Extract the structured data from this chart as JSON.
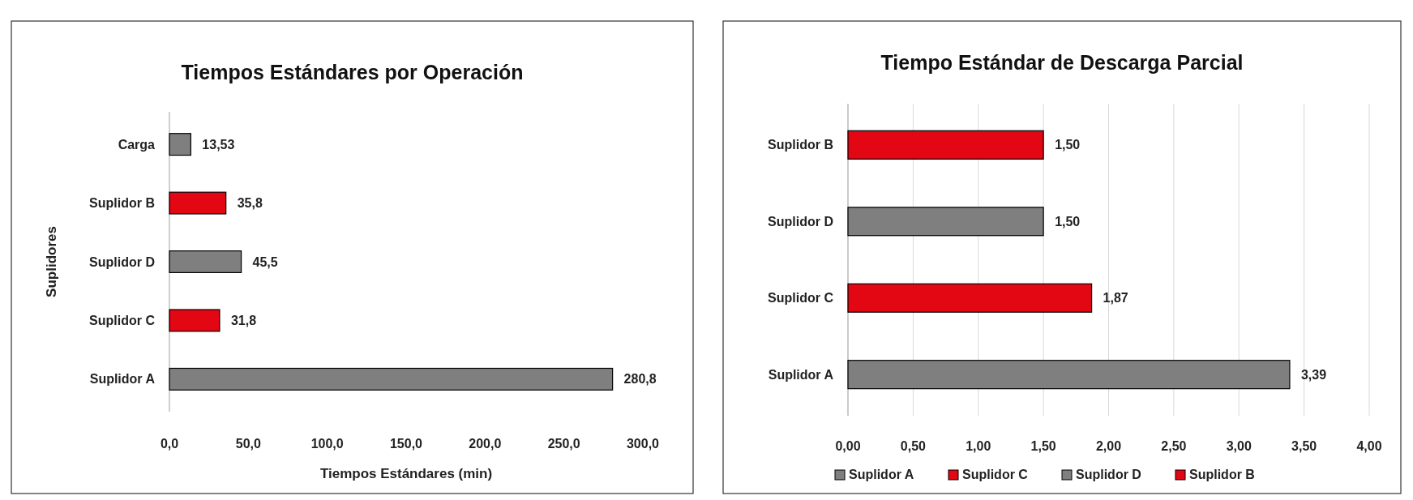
{
  "chart_data": [
    {
      "type": "bar",
      "orientation": "horizontal",
      "title": "Tiempos Estándares por Operación",
      "xlabel": "Tiempos Estándares (min)",
      "ylabel": "Suplidores",
      "categories": [
        "Carga",
        "Suplidor B",
        "Suplidor D",
        "Suplidor C",
        "Suplidor A"
      ],
      "values": [
        13.53,
        35.8,
        45.5,
        31.8,
        280.8
      ],
      "colors": [
        "#7f7f7f",
        "#e30613",
        "#7f7f7f",
        "#e30613",
        "#7f7f7f"
      ],
      "value_labels": [
        "13,53",
        "35,8",
        "45,5",
        "31,8",
        "280,8"
      ],
      "xlim": [
        0,
        300
      ],
      "xticks": [
        {
          "value": 0,
          "label": "0,0"
        },
        {
          "value": 50,
          "label": "50,0"
        },
        {
          "value": 100,
          "label": "100,0"
        },
        {
          "value": 150,
          "label": "150,0"
        },
        {
          "value": 200,
          "label": "200,0"
        },
        {
          "value": 250,
          "label": "250,0"
        },
        {
          "value": 300,
          "label": "300,0"
        }
      ],
      "grid": false
    },
    {
      "type": "bar",
      "orientation": "horizontal",
      "title": "Tiempo Estándar de Descarga Parcial",
      "categories": [
        "Suplidor B",
        "Suplidor D",
        "Suplidor C",
        "Suplidor A"
      ],
      "series": [
        {
          "name": "Suplidor A",
          "color": "#7f7f7f",
          "values": [
            null,
            null,
            null,
            3.39
          ],
          "value_labels": [
            null,
            null,
            null,
            "3,39"
          ]
        },
        {
          "name": "Suplidor C",
          "color": "#e30613",
          "values": [
            null,
            null,
            1.87,
            null
          ],
          "value_labels": [
            null,
            null,
            "1,87",
            null
          ]
        },
        {
          "name": "Suplidor D",
          "color": "#7f7f7f",
          "values": [
            null,
            1.5,
            null,
            null
          ],
          "value_labels": [
            null,
            "1,50",
            null,
            null
          ]
        },
        {
          "name": "Suplidor B",
          "color": "#e30613",
          "values": [
            1.5,
            null,
            null,
            null
          ],
          "value_labels": [
            "1,50",
            null,
            null,
            null
          ]
        }
      ],
      "xlim": [
        0,
        4
      ],
      "xticks": [
        {
          "value": 0,
          "label": "0,00"
        },
        {
          "value": 0.5,
          "label": "0,50"
        },
        {
          "value": 1,
          "label": "1,00"
        },
        {
          "value": 1.5,
          "label": "1,50"
        },
        {
          "value": 2,
          "label": "2,00"
        },
        {
          "value": 2.5,
          "label": "2,50"
        },
        {
          "value": 3,
          "label": "3,00"
        },
        {
          "value": 3.5,
          "label": "3,50"
        },
        {
          "value": 4,
          "label": "4,00"
        }
      ],
      "grid": "x",
      "legend": "bottom"
    }
  ]
}
